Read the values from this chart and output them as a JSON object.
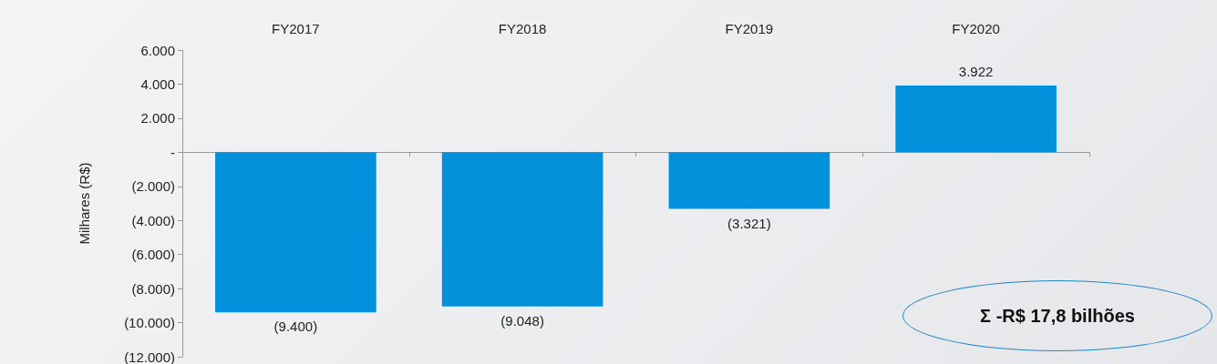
{
  "chart_data": {
    "type": "bar",
    "ylabel": "Milhares (R$)",
    "categories": [
      "FY2017",
      "FY2018",
      "FY2019",
      "FY2020"
    ],
    "values": [
      -9400,
      -9048,
      -3321,
      3922
    ],
    "value_labels": [
      "(9.400)",
      "(9.048)",
      "(3.321)",
      "3.922"
    ],
    "color": "#0491dc",
    "ylim": [
      -12000,
      6000
    ],
    "yticks": [
      {
        "value": -12000,
        "label": "(12.000)"
      },
      {
        "value": -10000,
        "label": "(10.000)"
      },
      {
        "value": -8000,
        "label": "(8.000)"
      },
      {
        "value": -6000,
        "label": "(6.000)"
      },
      {
        "value": -4000,
        "label": "(4.000)"
      },
      {
        "value": -2000,
        "label": "(2.000)"
      },
      {
        "value": 0,
        "label": "-"
      },
      {
        "value": 2000,
        "label": "2.000"
      },
      {
        "value": 4000,
        "label": "4.000"
      },
      {
        "value": 6000,
        "label": "6.000"
      }
    ],
    "annotations": [
      "Σ -R$ 17,8 bilhões"
    ]
  }
}
